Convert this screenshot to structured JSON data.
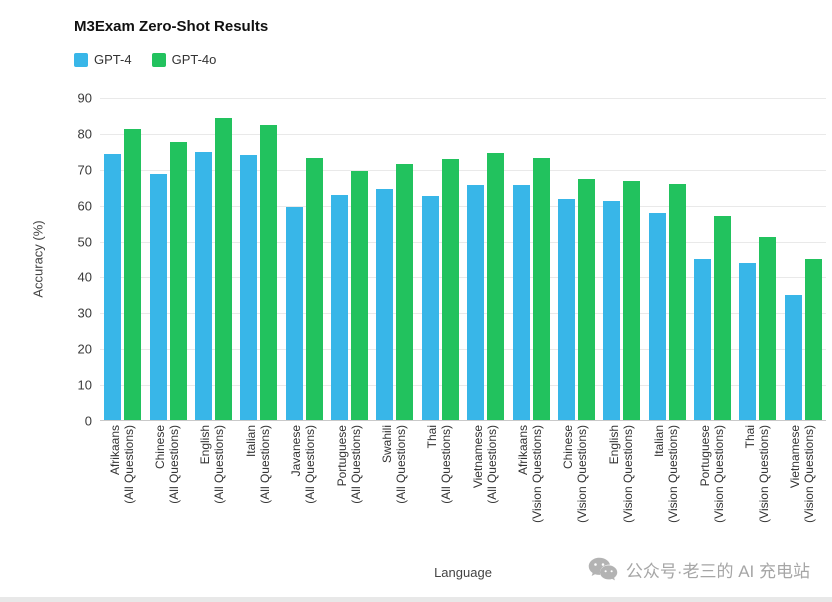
{
  "watermark": {
    "text": "公众号·老三的 AI 充电站"
  },
  "chart_data": {
    "type": "bar",
    "title": "M3Exam Zero-Shot Results",
    "xlabel": "Language",
    "ylabel": "Accuracy (%)",
    "ylim": [
      0,
      90
    ],
    "ytick_step": 10,
    "grid": true,
    "legend_position": "top-left",
    "categories": [
      {
        "language": "Afrikaans",
        "subset": "(All Questions)"
      },
      {
        "language": "Chinese",
        "subset": "(All Questions)"
      },
      {
        "language": "English",
        "subset": "(All Questions)"
      },
      {
        "language": "Italian",
        "subset": "(All Questions)"
      },
      {
        "language": "Javanese",
        "subset": "(All Questions)"
      },
      {
        "language": "Portuguese",
        "subset": "(All Questions)"
      },
      {
        "language": "Swahili",
        "subset": "(All Questions)"
      },
      {
        "language": "Thai",
        "subset": "(All Questions)"
      },
      {
        "language": "Vietnamese",
        "subset": "(All Questions)"
      },
      {
        "language": "Afrikaans",
        "subset": "(Vision Questions)"
      },
      {
        "language": "Chinese",
        "subset": "(Vision Questions)"
      },
      {
        "language": "English",
        "subset": "(Vision Questions)"
      },
      {
        "language": "Italian",
        "subset": "(Vision Questions)"
      },
      {
        "language": "Portuguese",
        "subset": "(Vision Questions)"
      },
      {
        "language": "Thai",
        "subset": "(Vision Questions)"
      },
      {
        "language": "Vietnamese",
        "subset": "(Vision Questions)"
      }
    ],
    "series": [
      {
        "name": "GPT-4",
        "color": "#38b6e8",
        "values": [
          74.3,
          68.9,
          75.0,
          74.0,
          59.7,
          63.0,
          64.6,
          62.6,
          65.7,
          65.9,
          61.9,
          61.4,
          58.0,
          45.1,
          43.9,
          35.0
        ]
      },
      {
        "name": "GPT-4o",
        "color": "#22c25e",
        "values": [
          81.4,
          77.8,
          84.4,
          82.5,
          73.3,
          69.8,
          71.6,
          73.0,
          74.6,
          73.3,
          67.4,
          66.9,
          66.0,
          57.0,
          51.4,
          45.1
        ]
      }
    ]
  }
}
